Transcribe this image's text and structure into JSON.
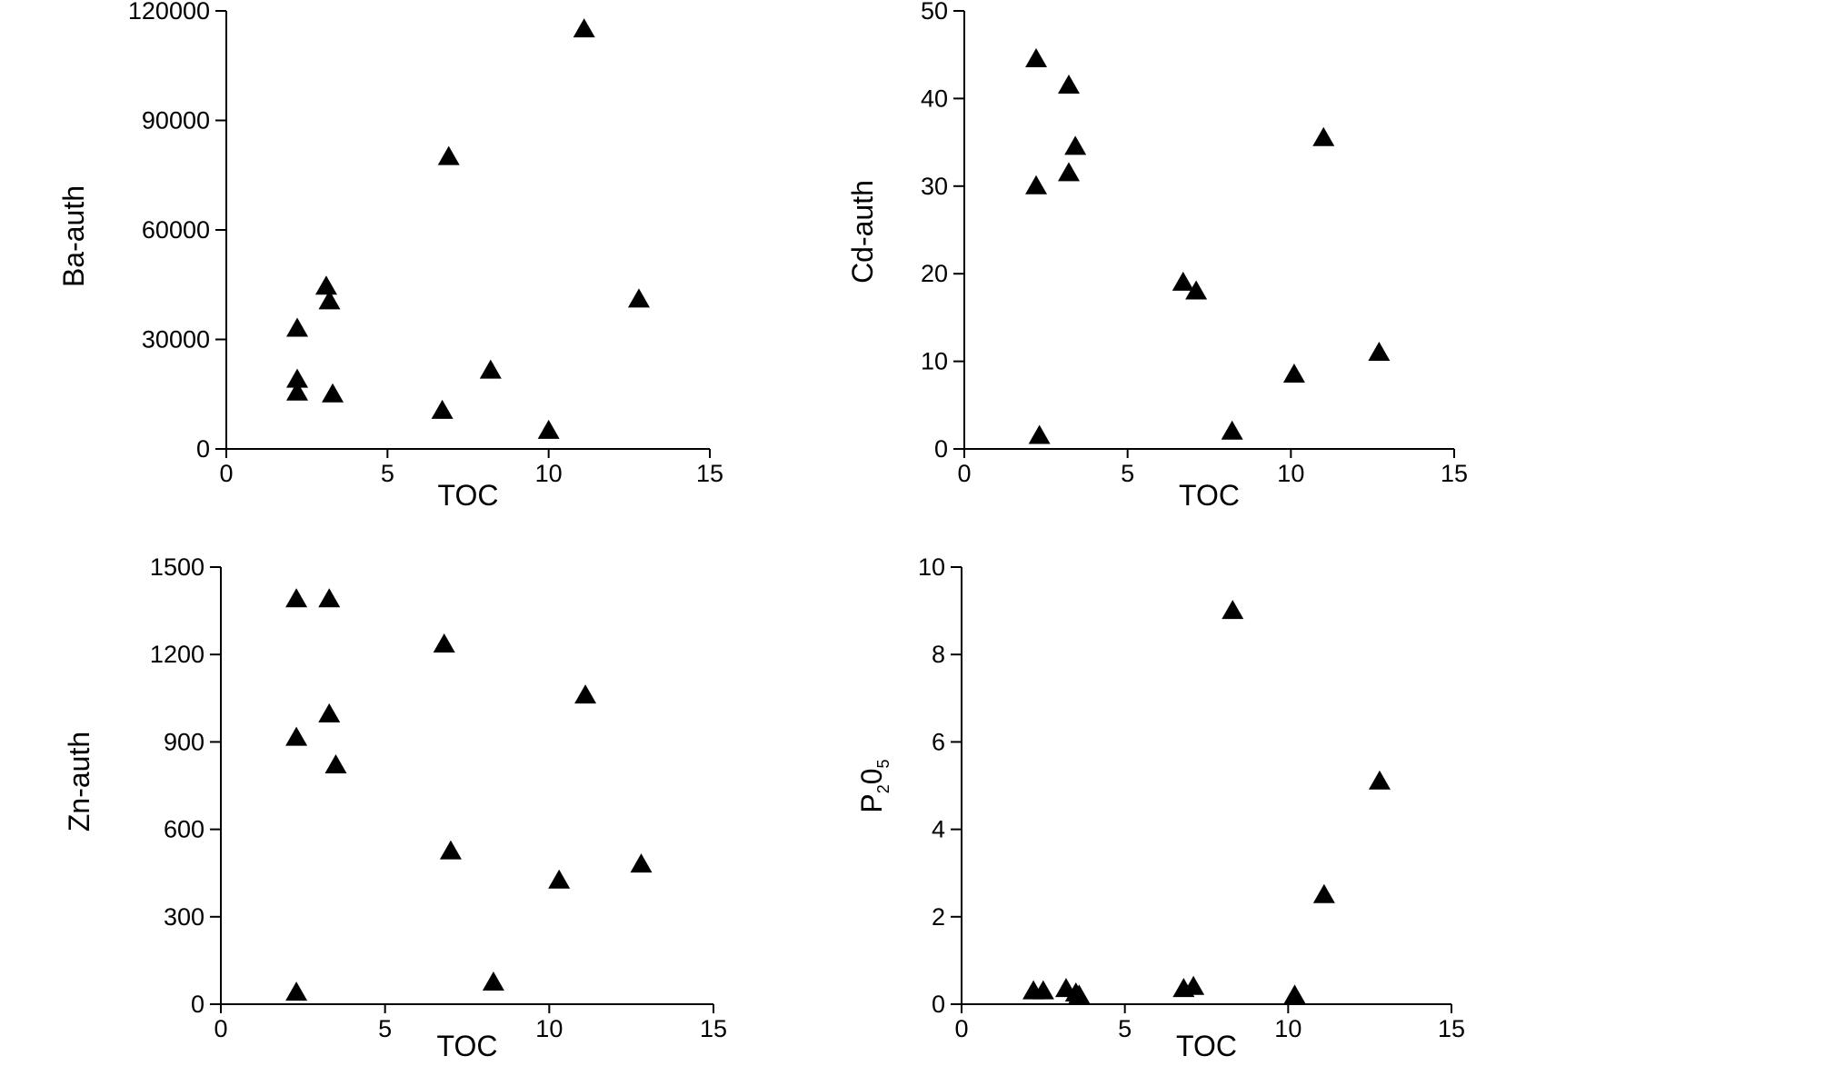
{
  "chart_data": [
    {
      "type": "scatter",
      "xlabel": "TOC",
      "ylabel": "Ba-auth",
      "xlim": [
        0,
        15
      ],
      "ylim": [
        0,
        120000
      ],
      "xticks": [
        "0",
        "5",
        "10",
        "15"
      ],
      "yticks": [
        "0",
        "30000",
        "60000",
        "90000",
        "120000"
      ],
      "points": [
        {
          "x": 2.2,
          "y": 33000
        },
        {
          "x": 2.2,
          "y": 19000
        },
        {
          "x": 2.2,
          "y": 15500
        },
        {
          "x": 3.1,
          "y": 44500
        },
        {
          "x": 3.2,
          "y": 40500
        },
        {
          "x": 3.3,
          "y": 15000
        },
        {
          "x": 6.7,
          "y": 10500
        },
        {
          "x": 6.9,
          "y": 80000
        },
        {
          "x": 8.2,
          "y": 21500
        },
        {
          "x": 10.0,
          "y": 5000
        },
        {
          "x": 11.1,
          "y": 115000
        },
        {
          "x": 12.8,
          "y": 41000
        }
      ]
    },
    {
      "type": "scatter",
      "xlabel": "TOC",
      "ylabel": "Cd-auth",
      "xlim": [
        0,
        15
      ],
      "ylim": [
        0,
        50
      ],
      "xticks": [
        "0",
        "5",
        "10",
        "15"
      ],
      "yticks": [
        "0",
        "10",
        "20",
        "30",
        "40",
        "50"
      ],
      "points": [
        {
          "x": 2.2,
          "y": 44.5
        },
        {
          "x": 2.2,
          "y": 30
        },
        {
          "x": 2.3,
          "y": 1.5
        },
        {
          "x": 3.2,
          "y": 41.5
        },
        {
          "x": 3.2,
          "y": 31.5
        },
        {
          "x": 3.4,
          "y": 34.5
        },
        {
          "x": 6.7,
          "y": 19
        },
        {
          "x": 7.1,
          "y": 18
        },
        {
          "x": 8.2,
          "y": 2
        },
        {
          "x": 10.1,
          "y": 8.5
        },
        {
          "x": 11.0,
          "y": 35.5
        },
        {
          "x": 12.7,
          "y": 11
        }
      ]
    },
    {
      "type": "scatter",
      "xlabel": "TOC",
      "ylabel": "Zn-auth",
      "xlim": [
        0,
        15
      ],
      "ylim": [
        0,
        1500
      ],
      "xticks": [
        "0",
        "5",
        "10",
        "15"
      ],
      "yticks": [
        "0",
        "300",
        "600",
        "900",
        "1200",
        "1500"
      ],
      "points": [
        {
          "x": 2.3,
          "y": 1390
        },
        {
          "x": 2.3,
          "y": 915
        },
        {
          "x": 2.3,
          "y": 40
        },
        {
          "x": 3.3,
          "y": 1390
        },
        {
          "x": 3.3,
          "y": 995
        },
        {
          "x": 3.5,
          "y": 820
        },
        {
          "x": 6.8,
          "y": 1235
        },
        {
          "x": 7.0,
          "y": 525
        },
        {
          "x": 8.3,
          "y": 75
        },
        {
          "x": 10.3,
          "y": 425
        },
        {
          "x": 11.1,
          "y": 1060
        },
        {
          "x": 12.8,
          "y": 480
        }
      ]
    },
    {
      "type": "scatter",
      "xlabel": "TOC",
      "ylabel": "P",
      "ylabel_sub1": "2",
      "ylabel_mid": "0",
      "ylabel_sub2": "5",
      "xlim": [
        0,
        15
      ],
      "ylim": [
        0,
        10
      ],
      "xticks": [
        "0",
        "5",
        "10",
        "15"
      ],
      "yticks": [
        "0",
        "2",
        "4",
        "6",
        "8",
        "10"
      ],
      "points": [
        {
          "x": 2.2,
          "y": 0.3
        },
        {
          "x": 2.5,
          "y": 0.3
        },
        {
          "x": 3.2,
          "y": 0.35
        },
        {
          "x": 3.5,
          "y": 0.25
        },
        {
          "x": 3.6,
          "y": 0.2
        },
        {
          "x": 6.8,
          "y": 0.35
        },
        {
          "x": 7.1,
          "y": 0.4
        },
        {
          "x": 8.3,
          "y": 9.0
        },
        {
          "x": 10.2,
          "y": 0.2
        },
        {
          "x": 11.1,
          "y": 2.5
        },
        {
          "x": 12.8,
          "y": 5.1
        }
      ]
    }
  ]
}
